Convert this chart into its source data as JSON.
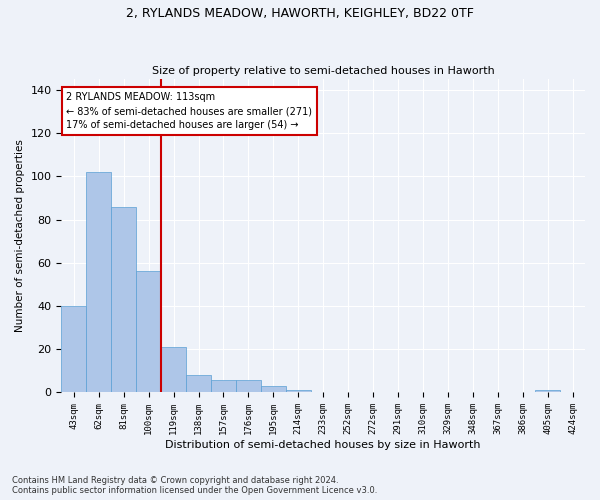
{
  "title1": "2, RYLANDS MEADOW, HAWORTH, KEIGHLEY, BD22 0TF",
  "title2": "Size of property relative to semi-detached houses in Haworth",
  "xlabel": "Distribution of semi-detached houses by size in Haworth",
  "ylabel": "Number of semi-detached properties",
  "footnote": "Contains HM Land Registry data © Crown copyright and database right 2024.\nContains public sector information licensed under the Open Government Licence v3.0.",
  "bar_labels": [
    "43sqm",
    "62sqm",
    "81sqm",
    "100sqm",
    "119sqm",
    "138sqm",
    "157sqm",
    "176sqm",
    "195sqm",
    "214sqm",
    "233sqm",
    "252sqm",
    "272sqm",
    "291sqm",
    "310sqm",
    "329sqm",
    "348sqm",
    "367sqm",
    "386sqm",
    "405sqm",
    "424sqm"
  ],
  "bar_values": [
    40,
    102,
    86,
    56,
    21,
    8,
    6,
    6,
    3,
    1,
    0,
    0,
    0,
    0,
    0,
    0,
    0,
    0,
    0,
    1,
    0
  ],
  "bar_color": "#aec6e8",
  "bar_edge_color": "#5a9fd4",
  "vline_color": "#cc0000",
  "annotation_title": "2 RYLANDS MEADOW: 113sqm",
  "annotation_line1": "← 83% of semi-detached houses are smaller (271)",
  "annotation_line2": "17% of semi-detached houses are larger (54) →",
  "annotation_box_color": "#cc0000",
  "ylim": [
    0,
    145
  ],
  "yticks": [
    0,
    20,
    40,
    60,
    80,
    100,
    120,
    140
  ],
  "bg_color": "#eef2f9",
  "plot_bg_color": "#eef2f9",
  "grid_color": "#ffffff"
}
